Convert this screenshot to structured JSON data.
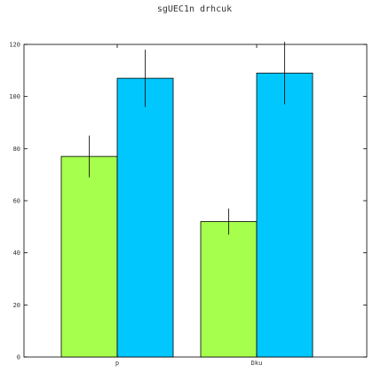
{
  "chart_data": {
    "type": "bar",
    "title": "sgUEC1n drhcuk",
    "xlabel": "",
    "ylabel": "",
    "categories": [
      "p",
      "Dku"
    ],
    "series": [
      {
        "color": "#a6ff4d",
        "values": [
          77,
          52
        ],
        "errors": [
          8,
          5
        ]
      },
      {
        "color": "#00c8ff",
        "values": [
          107,
          109
        ],
        "errors": [
          11,
          12
        ]
      }
    ],
    "ylim": [
      0,
      120
    ],
    "yticks": [
      0,
      20,
      40,
      60,
      80,
      100,
      120
    ],
    "grid": false,
    "legend": "none"
  }
}
